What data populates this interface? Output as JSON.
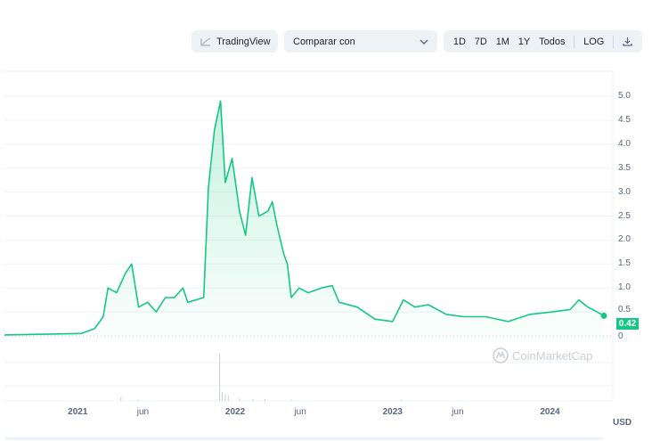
{
  "toolbar": {
    "tradingview_label": "TradingView",
    "compare_label": "Comparar con",
    "ranges": [
      "1D",
      "7D",
      "1M",
      "1Y",
      "Todos"
    ],
    "log_label": "LOG"
  },
  "current_price": "0.42",
  "currency": "USD",
  "watermark": "CoinMarketCap",
  "colors": {
    "line": "#16c784",
    "grid": "#eff2f5",
    "badge": "#16c784"
  },
  "chart_data": {
    "type": "area",
    "ylim": [
      0,
      5.0
    ],
    "yticks": [
      "0",
      "0.5",
      "1.0",
      "1.5",
      "2.0",
      "2.5",
      "3.0",
      "3.5",
      "4.0",
      "4.5",
      "5.0"
    ],
    "xticks": [
      {
        "label": "2021",
        "date": "2021-01-01",
        "bold": true
      },
      {
        "label": "jun",
        "date": "2021-06-01"
      },
      {
        "label": "2022",
        "date": "2022-01-01",
        "bold": true
      },
      {
        "label": "jun",
        "date": "2022-06-01"
      },
      {
        "label": "2023",
        "date": "2023-01-01",
        "bold": true
      },
      {
        "label": "jun",
        "date": "2023-06-01"
      },
      {
        "label": "2024",
        "date": "2024-01-01",
        "bold": true
      }
    ],
    "grid": true,
    "x": [
      "2020-07-15",
      "2021-01-09",
      "2021-02-09",
      "2021-03-01",
      "2021-03-12",
      "2021-04-01",
      "2021-04-21",
      "2021-05-06",
      "2021-05-22",
      "2021-06-12",
      "2021-07-02",
      "2021-07-23",
      "2021-08-13",
      "2021-09-02",
      "2021-09-13",
      "2021-10-20",
      "2021-10-31",
      "2021-11-14",
      "2021-11-28",
      "2021-12-09",
      "2021-12-25",
      "2022-01-11",
      "2022-01-25",
      "2022-02-09",
      "2022-02-25",
      "2022-03-18",
      "2022-03-28",
      "2022-04-08",
      "2022-04-24",
      "2022-05-02",
      "2022-05-11",
      "2022-05-29",
      "2022-06-19",
      "2022-07-20",
      "2022-08-14",
      "2022-08-30",
      "2022-10-11",
      "2022-11-21",
      "2023-01-01",
      "2023-01-26",
      "2023-02-22",
      "2023-03-25",
      "2023-05-05",
      "2023-06-15",
      "2023-08-05",
      "2023-09-26",
      "2023-11-16",
      "2024-01-07",
      "2024-02-17",
      "2024-03-08",
      "2024-03-29",
      "2024-04-19",
      "2024-05-05"
    ],
    "y": [
      0.02,
      0.05,
      0.15,
      0.4,
      1.0,
      0.9,
      1.3,
      1.5,
      0.6,
      0.7,
      0.5,
      0.8,
      0.8,
      1.0,
      0.7,
      0.8,
      3.1,
      4.3,
      4.9,
      3.2,
      3.7,
      2.6,
      2.1,
      3.3,
      2.5,
      2.6,
      2.8,
      2.3,
      1.7,
      1.5,
      0.8,
      1.0,
      0.9,
      1.0,
      1.05,
      0.7,
      0.6,
      0.35,
      0.3,
      0.75,
      0.6,
      0.65,
      0.45,
      0.4,
      0.4,
      0.3,
      0.45,
      0.5,
      0.55,
      0.75,
      0.6,
      0.5,
      0.42
    ],
    "volume": {
      "x": [
        "2021-04-10",
        "2021-05-20",
        "2021-11-25",
        "2021-12-01",
        "2021-12-08",
        "2021-12-15",
        "2022-01-10",
        "2022-02-10",
        "2022-03-10",
        "2022-05-10",
        "2023-01-20"
      ],
      "relative": [
        0.08,
        0.03,
        1.0,
        0.18,
        0.14,
        0.12,
        0.05,
        0.04,
        0.04,
        0.03,
        0.02
      ]
    }
  }
}
